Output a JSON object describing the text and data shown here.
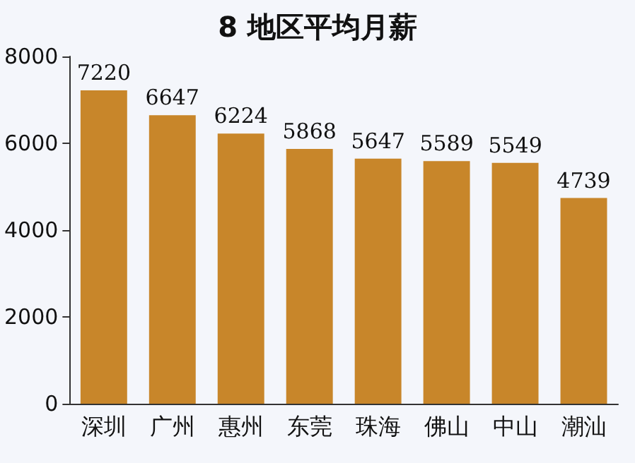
{
  "chart_data": {
    "type": "bar",
    "title": "8 地区平均月薪",
    "categories": [
      "深圳",
      "广州",
      "惠州",
      "东莞",
      "珠海",
      "佛山",
      "中山",
      "潮汕"
    ],
    "values": [
      7220,
      6647,
      6224,
      5868,
      5647,
      5589,
      5549,
      4739
    ],
    "color": "#c8862a",
    "ylim": [
      0,
      8000
    ],
    "yticks": [
      0,
      2000,
      4000,
      6000,
      8000
    ],
    "grid": false,
    "data_labels": true
  }
}
